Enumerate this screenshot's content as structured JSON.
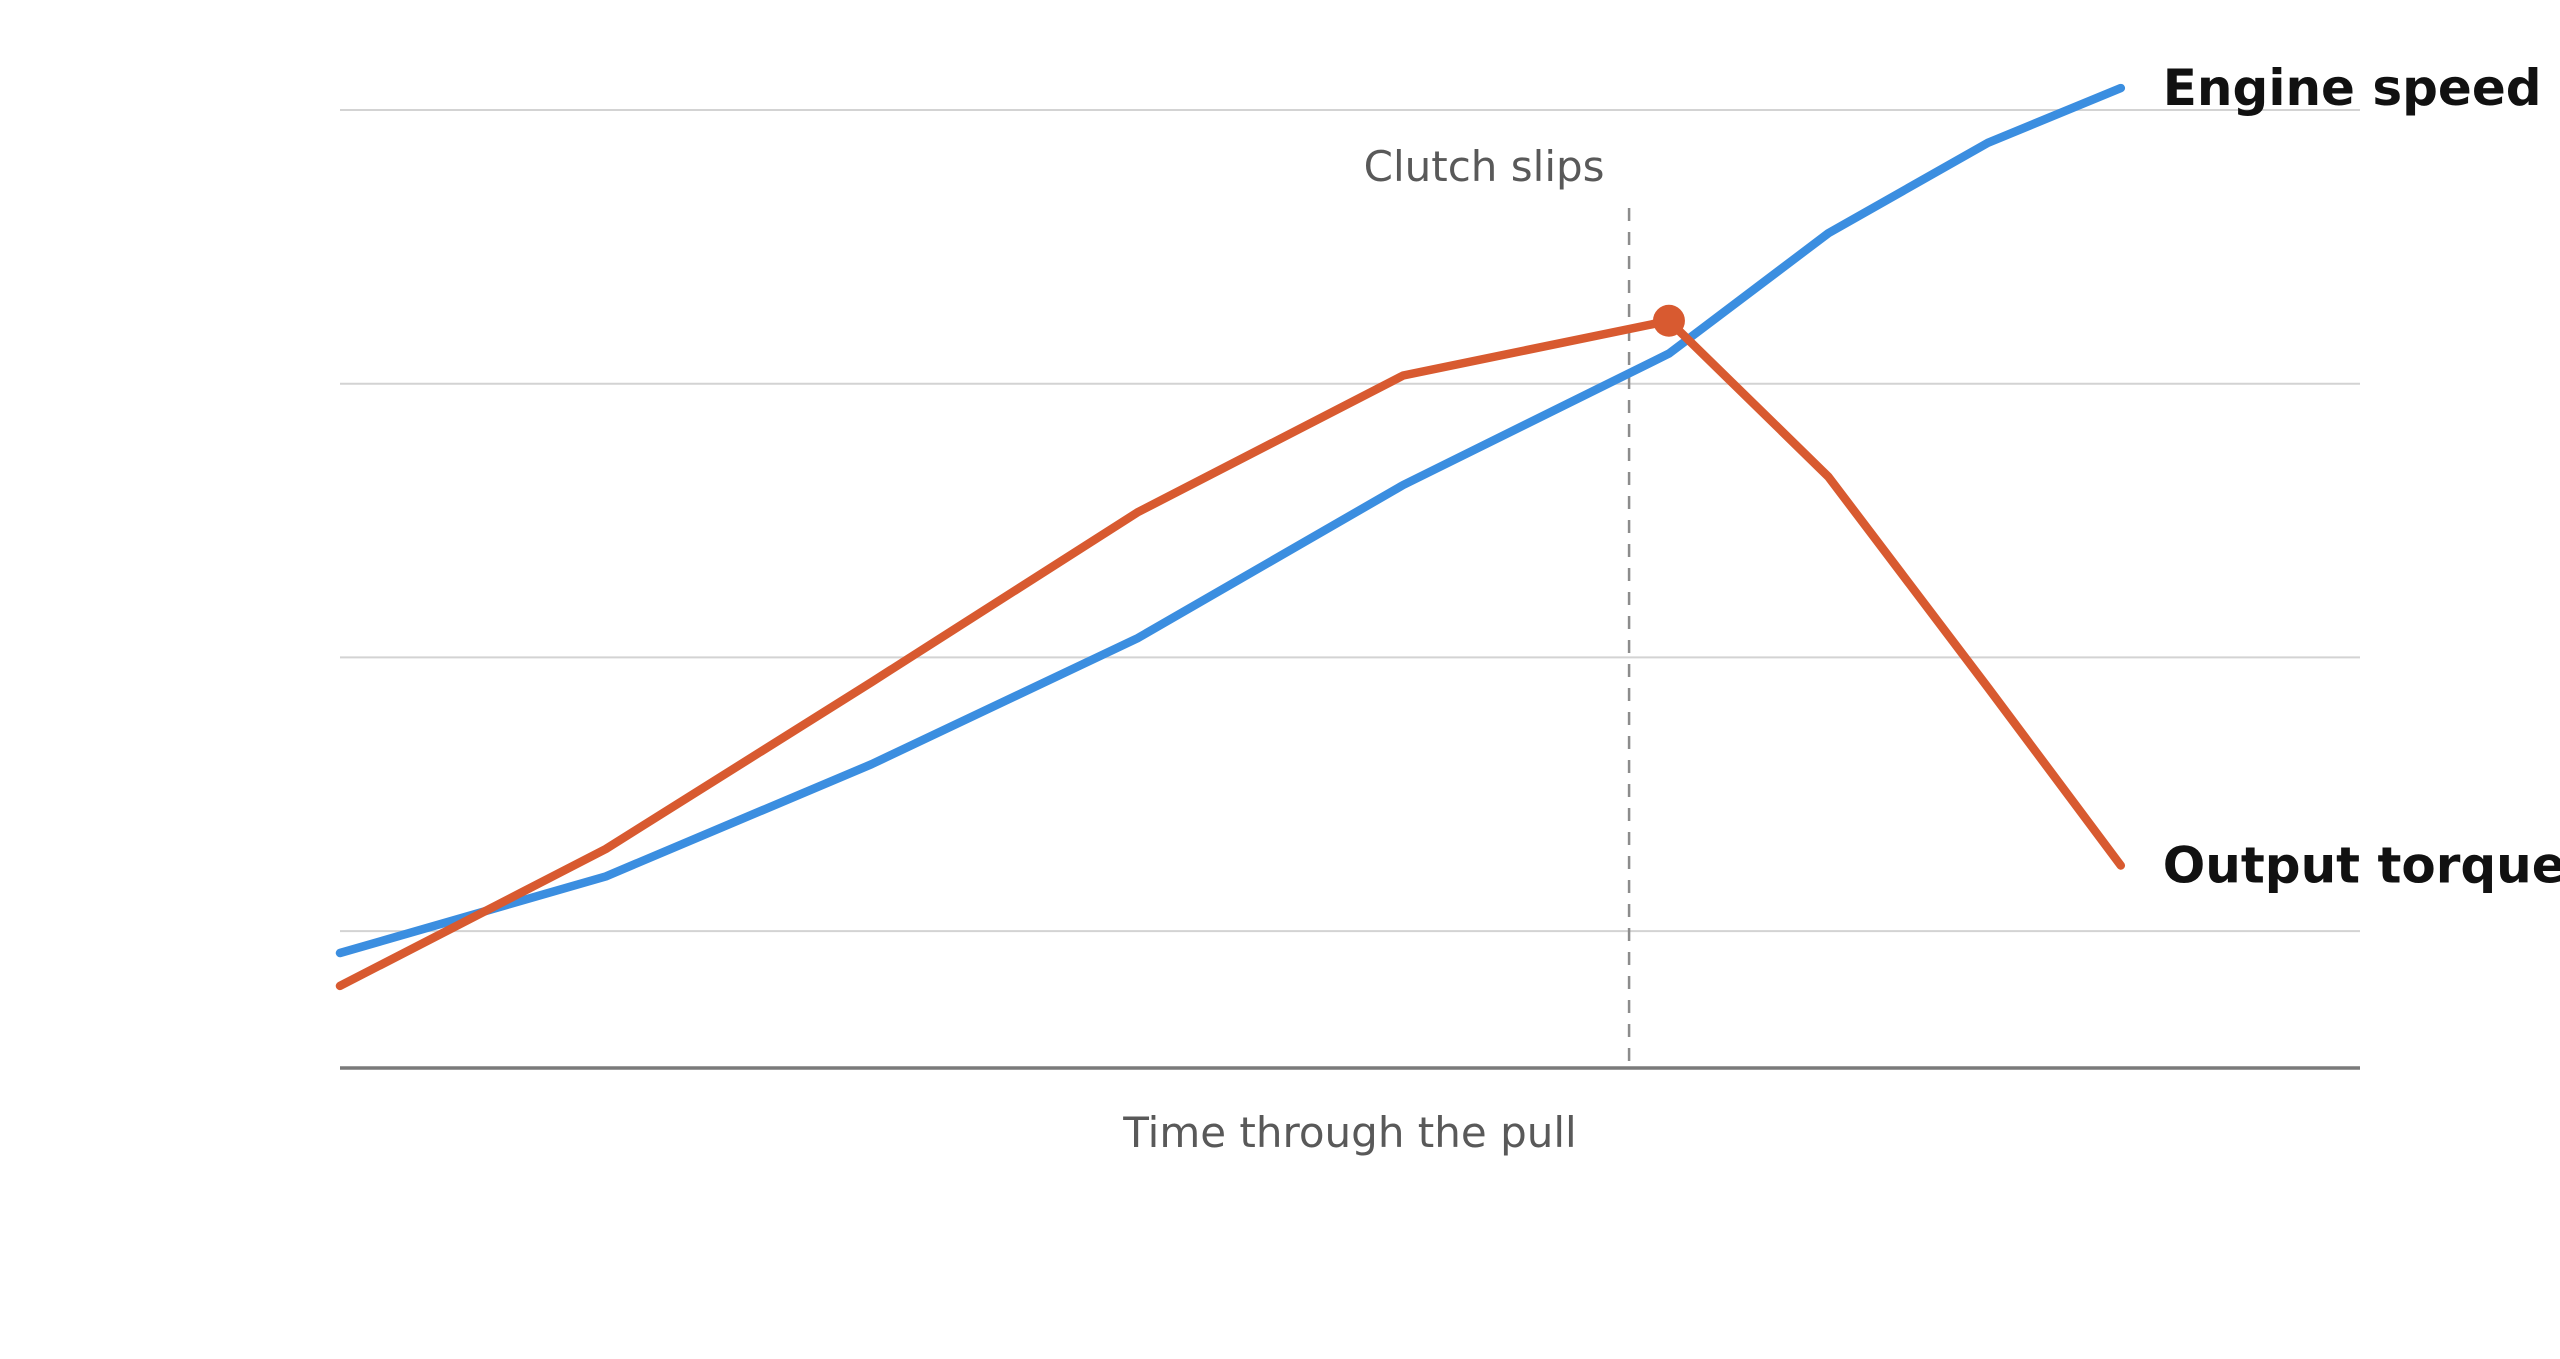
{
  "chart_data": {
    "type": "line",
    "title": "",
    "xlabel": "Time through the pull",
    "ylabel": "",
    "x": [
      0,
      1,
      2,
      3,
      4,
      5,
      5.6,
      6.2,
      6.7
    ],
    "xlim": [
      0,
      7.6
    ],
    "ylim": [
      0,
      3.5
    ],
    "grid": true,
    "gridlines_y": [
      0.5,
      1.5,
      2.5,
      3.5
    ],
    "legend": "direct labels at line ends",
    "annotations": [
      {
        "text": "Clutch slips",
        "x": 4.85
      }
    ],
    "series": [
      {
        "name": "Engine speed",
        "color": "#3b8ee0",
        "values": [
          0.42,
          0.7,
          1.11,
          1.57,
          2.13,
          2.61,
          3.05,
          3.38,
          3.58
        ]
      },
      {
        "name": "Output torque",
        "color": "#d85a30",
        "values": [
          0.3,
          0.8,
          1.41,
          2.03,
          2.53,
          2.73,
          2.16,
          1.39,
          0.74
        ],
        "highlight_point_index": 5
      }
    ]
  }
}
